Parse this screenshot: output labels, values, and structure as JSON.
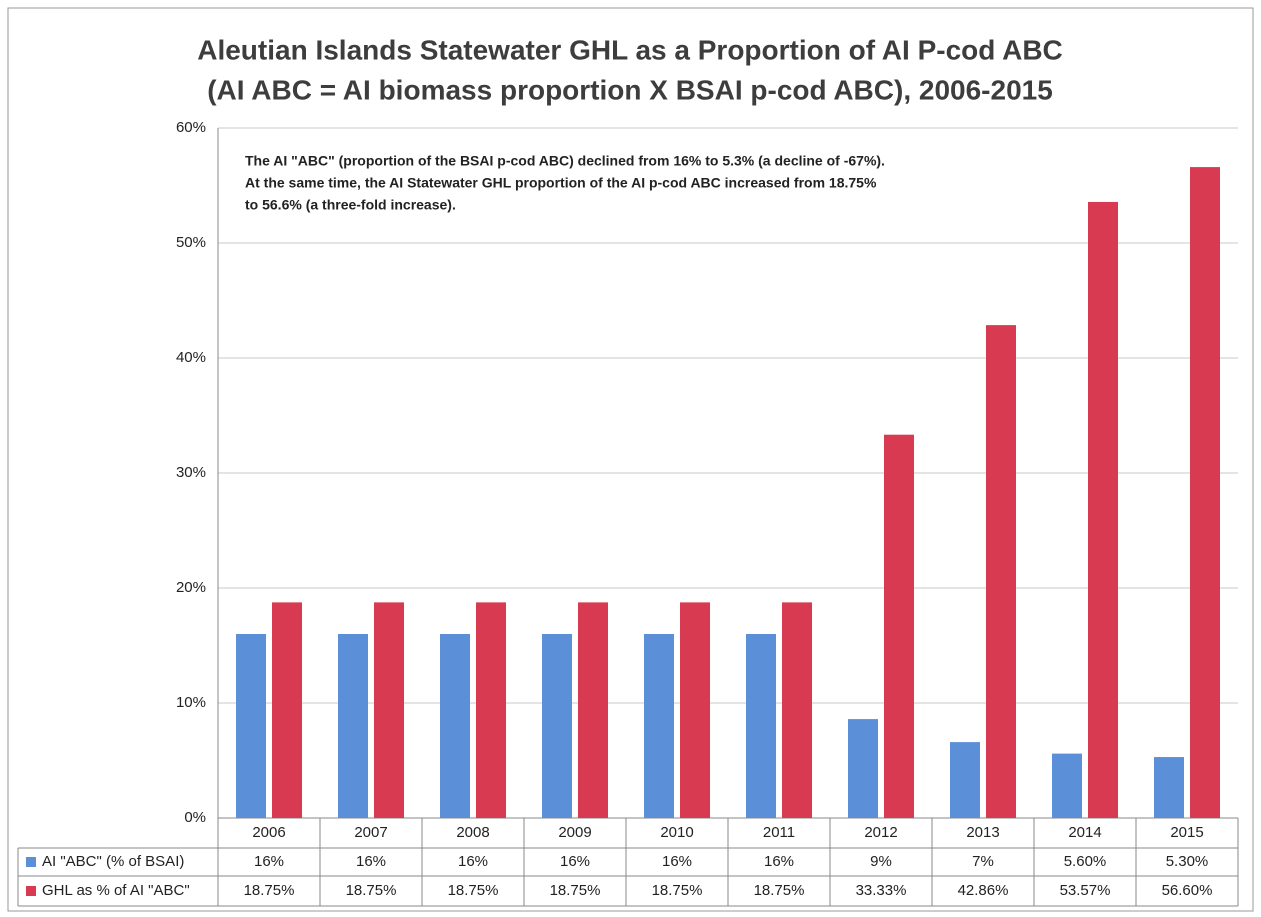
{
  "chart_data": {
    "type": "bar",
    "title": [
      "Aleutian Islands Statewater GHL as a Proportion of AI P-cod ABC",
      "(AI ABC = AI biomass proportion X BSAI p-cod ABC), 2006-2015"
    ],
    "annotation": [
      "The AI \"ABC\" (proportion of the BSAI p-cod ABC) declined  from 16% to 5.3% (a decline of -67%).",
      "At the same time, the AI Statewater GHL proportion of the AI p-cod ABC increased from 18.75%",
      "to 56.6%  (a three-fold increase)."
    ],
    "categories": [
      "2006",
      "2007",
      "2008",
      "2009",
      "2010",
      "2011",
      "2012",
      "2013",
      "2014",
      "2015"
    ],
    "series": [
      {
        "name": "AI \"ABC\" (% of BSAI)",
        "color": "#5b8fd8",
        "values": [
          16,
          16,
          16,
          16,
          16,
          16,
          8.6,
          6.6,
          5.6,
          5.3
        ],
        "value_labels": [
          "16%",
          "16%",
          "16%",
          "16%",
          "16%",
          "16%",
          "9%",
          "7%",
          "5.60%",
          "5.30%"
        ]
      },
      {
        "name": "GHL as % of AI \"ABC\"",
        "color": "#d83a52",
        "values": [
          18.75,
          18.75,
          18.75,
          18.75,
          18.75,
          18.75,
          33.33,
          42.86,
          53.57,
          56.6
        ],
        "value_labels": [
          "18.75%",
          "18.75%",
          "18.75%",
          "18.75%",
          "18.75%",
          "18.75%",
          "33.33%",
          "42.86%",
          "53.57%",
          "56.60%"
        ]
      }
    ],
    "ylim": [
      0,
      60
    ],
    "yticks": [
      {
        "value": 0,
        "label": "0%"
      },
      {
        "value": 10,
        "label": "10%"
      },
      {
        "value": 20,
        "label": "20%"
      },
      {
        "value": 30,
        "label": "30%"
      },
      {
        "value": 40,
        "label": "40%"
      },
      {
        "value": 50,
        "label": "50%"
      },
      {
        "value": 60,
        "label": "60%"
      }
    ],
    "grid": true
  }
}
